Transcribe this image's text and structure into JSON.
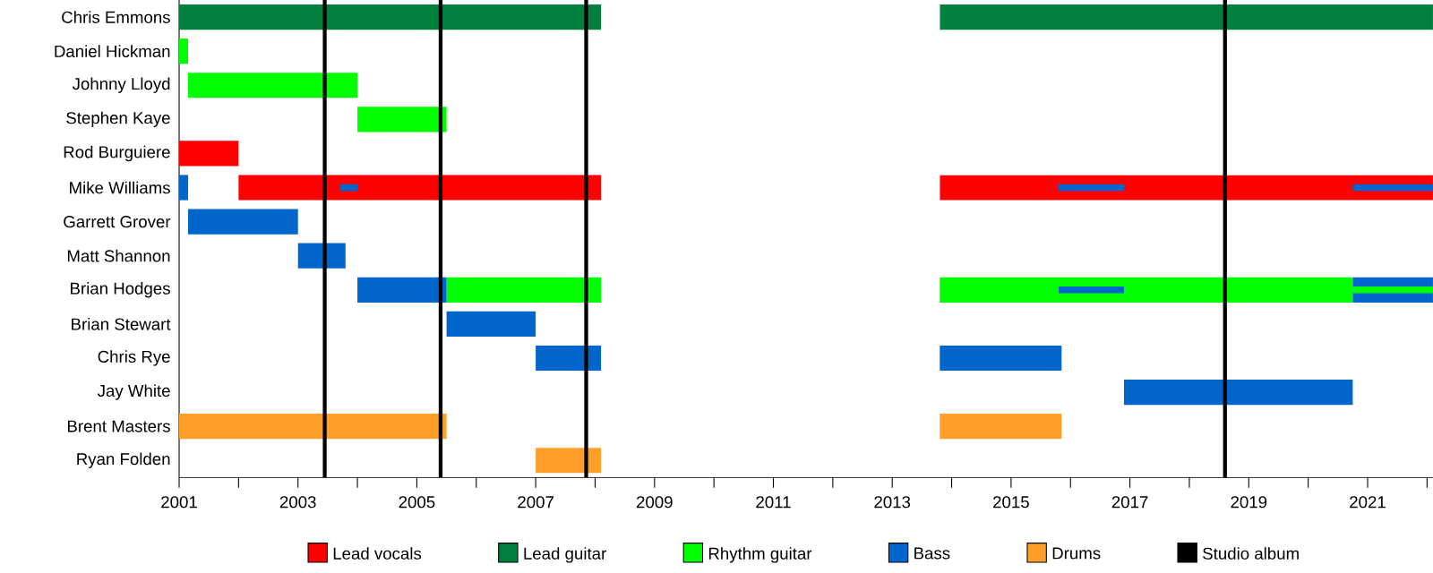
{
  "chart_data": {
    "type": "bar",
    "orientation": "horizontal",
    "legend": "bottom",
    "categories": [
      "Chris Emmons",
      "Daniel Hickman",
      "Johnny Lloyd",
      "Stephen Kaye",
      "Rod Burguiere",
      "Mike Williams",
      "Garrett Grover",
      "Matt Shannon",
      "Brian Hodges",
      "Brian Stewart",
      "Chris Rye",
      "Jay White",
      "Brent Masters",
      "Ryan Folden"
    ],
    "xlim": [
      2001,
      2022.1
    ],
    "xticks": [
      2001,
      {
        "value": 2002,
        "label": null
      },
      2003,
      {
        "value": 2004,
        "label": null
      },
      2005,
      {
        "value": 2006,
        "label": null
      },
      2007,
      {
        "value": 2008,
        "label": null
      },
      2009,
      {
        "value": 2010,
        "label": null
      },
      2011,
      {
        "value": 2012,
        "label": null
      },
      2013,
      {
        "value": 2014,
        "label": null
      },
      2015,
      {
        "value": 2016,
        "label": null
      },
      2017,
      {
        "value": 2018,
        "label": null
      },
      2019,
      {
        "value": 2020,
        "label": null
      },
      2021,
      {
        "value": 2022,
        "label": null
      }
    ],
    "series": [
      {
        "name": "Lead vocals",
        "color": "#ff0000",
        "base": [
          null,
          null,
          null,
          null,
          2001,
          2002.0,
          null,
          null,
          null,
          null,
          null,
          null,
          null,
          null
        ],
        "values": [
          null,
          null,
          null,
          null,
          1.0,
          6.1,
          null,
          null,
          null,
          null,
          null,
          null,
          null,
          null
        ]
      },
      {
        "color": "#ff0000",
        "base": [
          null,
          null,
          null,
          null,
          null,
          2013.8,
          null,
          null,
          null,
          null,
          null,
          null,
          null,
          null
        ],
        "values": [
          null,
          null,
          null,
          null,
          null,
          8.3,
          null,
          null,
          null,
          null,
          null,
          null,
          null,
          null
        ]
      },
      {
        "name": "Lead guitar",
        "color": "#00803c",
        "base": [
          2001,
          null,
          null,
          null,
          null,
          null,
          null,
          null,
          null,
          null,
          null,
          null,
          null,
          null
        ],
        "values": [
          7.1,
          null,
          null,
          null,
          null,
          null,
          null,
          null,
          null,
          null,
          null,
          null,
          null,
          null
        ]
      },
      {
        "color": "#00803c",
        "base": [
          2013.8,
          null,
          null,
          null,
          null,
          null,
          null,
          null,
          null,
          null,
          null,
          null,
          null,
          null
        ],
        "values": [
          8.3,
          null,
          null,
          null,
          null,
          null,
          null,
          null,
          null,
          null,
          null,
          null,
          null,
          null
        ]
      },
      {
        "name": "Rhythm guitar",
        "color": "#00ff00",
        "base": [
          null,
          2001,
          2001.15,
          2004.0,
          null,
          null,
          null,
          null,
          2005.5,
          null,
          null,
          null,
          null,
          null
        ],
        "values": [
          null,
          0.15,
          2.85,
          1.5,
          null,
          null,
          null,
          null,
          2.6,
          null,
          null,
          null,
          null,
          null
        ]
      },
      {
        "color": "#00ff00",
        "base": [
          null,
          null,
          null,
          null,
          null,
          null,
          null,
          null,
          2013.8,
          null,
          null,
          null,
          null,
          null
        ],
        "values": [
          null,
          null,
          null,
          null,
          null,
          null,
          null,
          null,
          6.95,
          null,
          null,
          null,
          null,
          null
        ]
      },
      {
        "name": "Bass",
        "color": "#0066cc",
        "base": [
          null,
          null,
          null,
          null,
          null,
          2001,
          2001.15,
          2003.0,
          2004.0,
          2005.5,
          2007.0,
          2016.9,
          null,
          null
        ],
        "values": [
          null,
          null,
          null,
          null,
          null,
          0.15,
          1.85,
          0.8,
          1.5,
          1.5,
          1.1,
          3.85,
          null,
          null
        ]
      },
      {
        "color": "#0066cc",
        "base": [
          null,
          null,
          null,
          null,
          null,
          2003.7,
          null,
          null,
          2020.75,
          null,
          2013.8,
          null,
          null,
          null
        ],
        "values": [
          null,
          null,
          null,
          null,
          null,
          0.3,
          null,
          null,
          1.35,
          null,
          2.05,
          null,
          null,
          null
        ]
      },
      {
        "color": "#0066cc",
        "base": [
          null,
          null,
          null,
          null,
          null,
          2015.8,
          null,
          null,
          2015.8,
          null,
          null,
          null,
          null,
          null
        ],
        "values": [
          null,
          null,
          null,
          null,
          null,
          1.1,
          null,
          null,
          1.1,
          null,
          null,
          null,
          null,
          null
        ]
      },
      {
        "color": "#0066cc",
        "base": [
          null,
          null,
          null,
          null,
          null,
          2020.75,
          null,
          null,
          null,
          null,
          null,
          null,
          null,
          null
        ],
        "values": [
          null,
          null,
          null,
          null,
          null,
          1.35,
          null,
          null,
          null,
          null,
          null,
          null,
          null,
          null
        ]
      },
      {
        "color": "#00ff00",
        "base": [
          null,
          null,
          null,
          null,
          null,
          null,
          null,
          null,
          2020.75,
          null,
          null,
          null,
          null,
          null
        ],
        "values": [
          null,
          null,
          null,
          null,
          null,
          null,
          null,
          null,
          1.35,
          null,
          null,
          null,
          null,
          null
        ]
      },
      {
        "name": "Drums",
        "color": "#ff9f2a",
        "base": [
          null,
          null,
          null,
          null,
          null,
          null,
          null,
          null,
          null,
          null,
          null,
          null,
          2001,
          2007.0
        ],
        "values": [
          null,
          null,
          null,
          null,
          null,
          null,
          null,
          null,
          null,
          null,
          null,
          null,
          4.5,
          1.1
        ]
      },
      {
        "color": "#ff9f2a",
        "base": [
          null,
          null,
          null,
          null,
          null,
          null,
          null,
          null,
          null,
          null,
          null,
          null,
          2013.8,
          null
        ],
        "values": [
          null,
          null,
          null,
          null,
          null,
          null,
          null,
          null,
          null,
          null,
          null,
          null,
          2.05,
          null
        ]
      }
    ],
    "ref_lines": [
      {
        "axis": "x",
        "value": 2003.45,
        "label": "Studio album",
        "color": "#000000"
      },
      {
        "axis": "x",
        "value": 2005.4,
        "color": "#000000"
      },
      {
        "axis": "x",
        "value": 2007.85,
        "color": "#000000"
      },
      {
        "axis": "x",
        "value": 2018.6,
        "color": "#000000"
      }
    ]
  }
}
